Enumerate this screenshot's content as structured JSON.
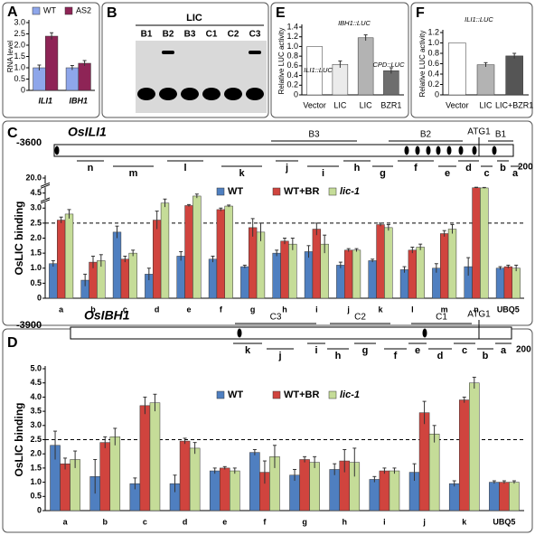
{
  "chart_data": [
    {
      "panel": "A",
      "type": "bar",
      "ylabel": "RNA level",
      "categories": [
        "ILI1",
        "IBH1"
      ],
      "series": [
        {
          "name": "WT",
          "color": "#8ea6ea",
          "values": [
            1.0,
            1.0
          ],
          "errors": [
            0.12,
            0.1
          ]
        },
        {
          "name": "AS2",
          "color": "#8e2456",
          "values": [
            2.4,
            1.2
          ],
          "errors": [
            0.15,
            0.12
          ]
        }
      ],
      "ylim": [
        0,
        3
      ],
      "yticks": [
        0,
        0.5,
        {
          "value": 1,
          "label": "1.0"
        },
        1.5,
        {
          "value": 2,
          "label": "2.0"
        },
        2.5,
        {
          "value": 3,
          "label": "3.0"
        }
      ]
    },
    {
      "panel": "E",
      "type": "bar",
      "ylabel": "Relative LUC activity",
      "categories": [
        "Vector",
        "LIC",
        "LIC",
        "BZR1"
      ],
      "values": [
        1.0,
        0.63,
        1.18,
        0.5
      ],
      "errors": [
        0,
        0.07,
        0.06,
        0.06
      ],
      "colors": [
        "#ffffff",
        "#ebebeb",
        "#b3b3b3",
        "#6e6e6e"
      ],
      "annotations": [
        "ILI1::LUC",
        "IBH1::LUC",
        "CPD::LUC"
      ],
      "ylim": [
        0,
        1.4
      ],
      "yticks": [
        0,
        0.2,
        0.4,
        0.6,
        0.8,
        {
          "value": 1,
          "label": "1.0"
        },
        1.2,
        1.4
      ]
    },
    {
      "panel": "F",
      "type": "bar",
      "ylabel": "Relative LUC activity",
      "categories": [
        "Vector",
        "LIC",
        "LIC+BZR1"
      ],
      "values": [
        1.0,
        0.58,
        0.75
      ],
      "errors": [
        0,
        0.04,
        0.05
      ],
      "colors": [
        "#ffffff",
        "#b3b3b3",
        "#555555"
      ],
      "annotations": [
        "ILI1::LUC"
      ],
      "ylim": [
        0,
        1.2
      ],
      "yticks": [
        0,
        0.2,
        0.4,
        0.6,
        0.8,
        {
          "value": 1,
          "label": "1.0"
        },
        1.2
      ]
    },
    {
      "panel": "C",
      "type": "bar",
      "ylabel": "OsLIC binding",
      "broken_axis": true,
      "threshold": 2.5,
      "categories": [
        "a",
        "b",
        "c",
        "d",
        "e",
        "f",
        "g",
        "h",
        "i",
        "j",
        "k",
        "l",
        "m",
        "n",
        "UBQ5"
      ],
      "series": [
        {
          "name": "WT",
          "color": "#4f7fc0",
          "values": [
            1.15,
            0.6,
            2.2,
            0.8,
            1.4,
            1.3,
            1.05,
            1.5,
            1.55,
            1.1,
            1.25,
            0.95,
            1.0,
            1.05,
            1.0
          ],
          "errors": [
            0.1,
            0.2,
            0.2,
            0.2,
            0.15,
            0.1,
            0.05,
            0.1,
            0.2,
            0.1,
            0.05,
            0.1,
            0.15,
            0.3,
            0.05
          ]
        },
        {
          "name": "WT+BR",
          "color": "#d0443e",
          "values": [
            2.6,
            1.2,
            1.3,
            2.6,
            3.25,
            2.95,
            2.35,
            1.9,
            2.3,
            1.6,
            2.45,
            1.6,
            2.15,
            10.0,
            1.05
          ],
          "errors": [
            0.1,
            0.2,
            0.1,
            0.3,
            0.1,
            0.05,
            0.3,
            0.1,
            0.2,
            0.05,
            0.05,
            0.1,
            0.1,
            0.5,
            0.05
          ]
        },
        {
          "name": "lic-1",
          "color": "#c5dc98",
          "values": [
            2.8,
            1.25,
            1.5,
            3.5,
            4.2,
            3.2,
            2.2,
            1.8,
            1.8,
            1.6,
            2.35,
            1.7,
            2.3,
            9.8,
            1.0
          ],
          "errors": [
            0.15,
            0.2,
            0.1,
            0.4,
            0.2,
            0.1,
            0.3,
            0.2,
            0.3,
            0.05,
            0.1,
            0.1,
            0.15,
            0.5,
            0.1
          ]
        }
      ],
      "ylim": [
        0,
        20
      ],
      "yticks": [
        0,
        0.5,
        {
          "value": 1,
          "label": "1.0"
        },
        1.5,
        {
          "value": 2,
          "label": "2.0"
        },
        2.5,
        {
          "value": 3,
          "label": "3.0"
        },
        4.5,
        {
          "value": 20,
          "label": "20.0"
        }
      ]
    },
    {
      "panel": "D",
      "type": "bar",
      "ylabel": "OsLIC binding",
      "threshold": 2.5,
      "categories": [
        "a",
        "b",
        "c",
        "d",
        "e",
        "f",
        "g",
        "h",
        "i",
        "j",
        "k",
        "UBQ5"
      ],
      "series": [
        {
          "name": "WT",
          "color": "#4f7fc0",
          "values": [
            2.3,
            1.2,
            0.95,
            0.95,
            1.4,
            2.05,
            1.25,
            1.45,
            1.1,
            1.35,
            0.95,
            1.0
          ],
          "errors": [
            0.5,
            0.6,
            0.2,
            0.3,
            0.1,
            0.1,
            0.2,
            0.2,
            0.1,
            0.3,
            0.1,
            0.05
          ]
        },
        {
          "name": "WT+BR",
          "color": "#d0443e",
          "values": [
            1.65,
            2.4,
            3.7,
            2.45,
            1.5,
            1.35,
            1.8,
            1.75,
            1.4,
            3.45,
            3.9,
            1.0
          ],
          "errors": [
            0.2,
            0.2,
            0.3,
            0.1,
            0.05,
            0.4,
            0.1,
            0.4,
            0.1,
            0.4,
            0.1,
            0.05
          ]
        },
        {
          "name": "lic-1",
          "color": "#c5dc98",
          "values": [
            1.8,
            2.6,
            3.8,
            2.2,
            1.4,
            1.9,
            1.7,
            1.7,
            1.4,
            2.7,
            4.5,
            1.0
          ],
          "errors": [
            0.3,
            0.3,
            0.3,
            0.2,
            0.1,
            0.4,
            0.2,
            0.5,
            0.1,
            0.3,
            0.2,
            0.05
          ]
        }
      ],
      "ylim": [
        0,
        5
      ],
      "yticks": [
        0,
        0.5,
        {
          "value": 1,
          "label": "1.0"
        },
        1.5,
        {
          "value": 2,
          "label": "2.0"
        },
        2.5,
        {
          "value": 3,
          "label": "3.0"
        },
        3.5,
        {
          "value": 4,
          "label": "4.0"
        },
        4.5,
        {
          "value": 5,
          "label": "5.0"
        }
      ]
    }
  ],
  "gel": {
    "panel": "B",
    "title": "LIC",
    "lanes": [
      "B1",
      "B2",
      "B3",
      "C1",
      "C2",
      "C3"
    ]
  },
  "gene_maps": [
    {
      "start": "-3600",
      "gene": "OsILI1",
      "regions": [
        "B3",
        "B2",
        "B1"
      ],
      "atg": "ATG1",
      "fragments": [
        "n",
        "m",
        "l",
        "k",
        "j",
        "i",
        "h",
        "g",
        "f",
        "e",
        "d",
        "c",
        "b",
        "a"
      ],
      "end": "200"
    },
    {
      "start": "-3900",
      "gene": "OsIBH1",
      "regions": [
        "C3",
        "C2",
        "C1"
      ],
      "atg": "ATG1",
      "fragments": [
        "k",
        "j",
        "i",
        "h",
        "g",
        "f",
        "e",
        "d",
        "c",
        "b",
        "a"
      ],
      "end": "200"
    }
  ]
}
